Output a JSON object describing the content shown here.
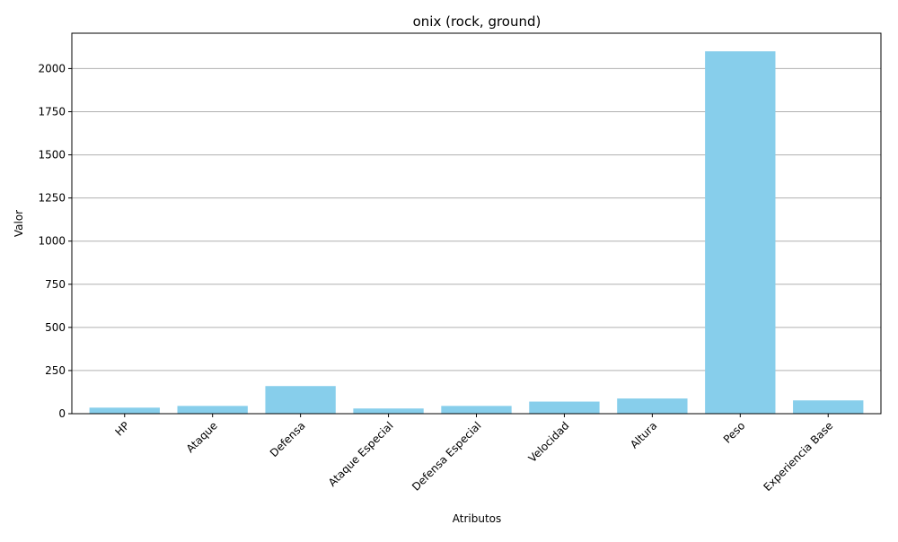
{
  "chart_data": {
    "type": "bar",
    "title": "onix (rock, ground)",
    "xlabel": "Atributos",
    "ylabel": "Valor",
    "categories": [
      "HP",
      "Ataque",
      "Defensa",
      "Ataque Especial",
      "Defensa Especial",
      "Velocidad",
      "Altura",
      "Peso",
      "Experiencia Base"
    ],
    "values": [
      35,
      45,
      160,
      30,
      45,
      70,
      88,
      2100,
      77
    ],
    "ylim": [
      0,
      2205
    ],
    "yticks": [
      0,
      250,
      500,
      750,
      1000,
      1250,
      1500,
      1750,
      2000
    ],
    "grid": "y",
    "bar_color": "#87ceeb",
    "grid_color": "#b0b0b0"
  }
}
